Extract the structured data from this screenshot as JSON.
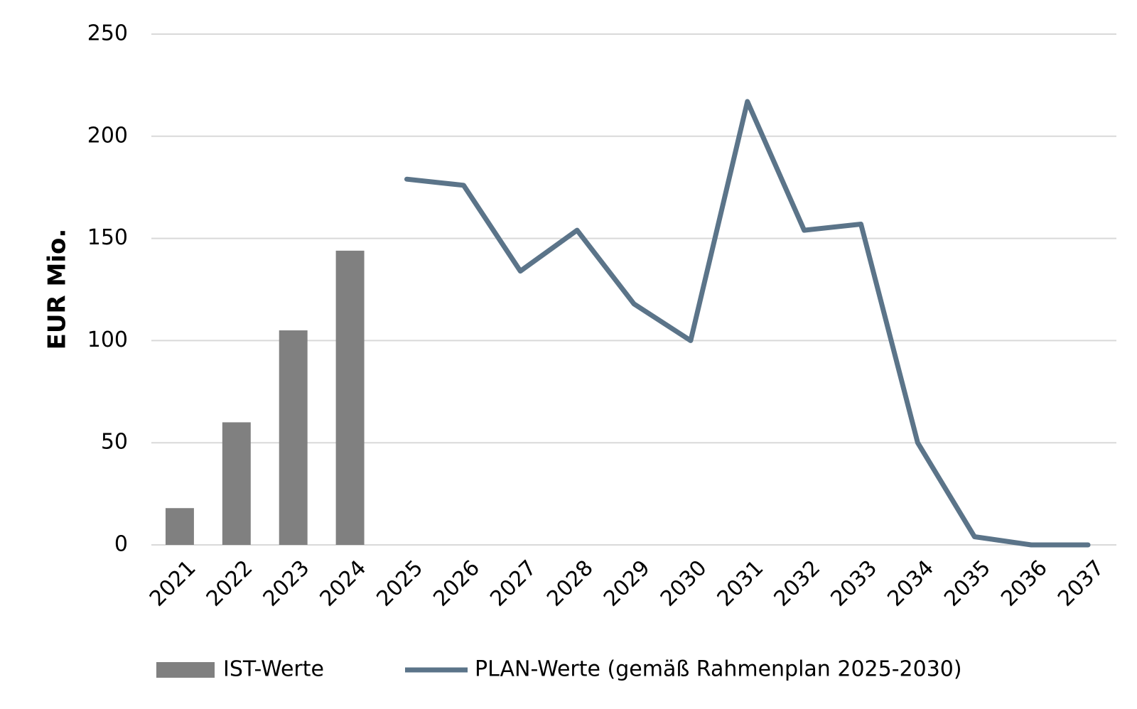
{
  "chart_data": {
    "type": "combo",
    "y_label": "EUR Mio.",
    "categories": [
      "2021",
      "2022",
      "2023",
      "2024",
      "2025",
      "2026",
      "2027",
      "2028",
      "2029",
      "2030",
      "2031",
      "2032",
      "2033",
      "2034",
      "2035",
      "2036",
      "2037"
    ],
    "series": [
      {
        "name": "IST-Werte",
        "type": "bar",
        "color": "#808080",
        "values": [
          18,
          60,
          105,
          144,
          null,
          null,
          null,
          null,
          null,
          null,
          null,
          null,
          null,
          null,
          null,
          null,
          null
        ]
      },
      {
        "name": "PLAN-Werte (gemäß Rahmenplan 2025-2030)",
        "type": "line",
        "color": "#5b7489",
        "values": [
          null,
          null,
          null,
          null,
          179,
          176,
          134,
          154,
          118,
          100,
          217,
          154,
          157,
          50,
          4,
          0,
          0
        ]
      }
    ],
    "ylim": [
      0,
      250
    ],
    "yticks": [
      0,
      50,
      100,
      150,
      200,
      250
    ],
    "grid": true,
    "legend": "bottom"
  }
}
